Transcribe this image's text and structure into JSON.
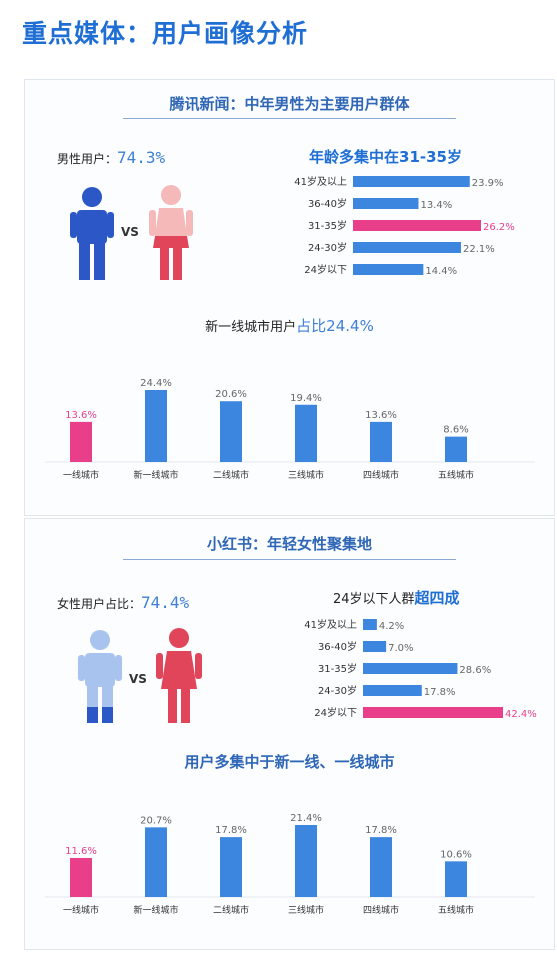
{
  "page_title": "重点媒体：用户画像分析",
  "tencent": {
    "section_title": "腾讯新闻：中年男性为主要用户群体",
    "ratio_label": "男性用户：",
    "ratio_value": "74.3%",
    "vs": "VS",
    "age_title": "年龄多集中在31-35岁",
    "city_title_prefix": "新一线城市用户",
    "city_title_highlight": "占比24.4%"
  },
  "xhs": {
    "section_title": "小红书：年轻女性聚集地",
    "ratio_label": "女性用户占比：",
    "ratio_value": "74.4%",
    "vs": "VS",
    "age_title_prefix": "24岁以下人群",
    "age_title_highlight": "超四成",
    "city_title": "用户多集中于新一线、一线城市"
  },
  "colors": {
    "blue": "#3d86e0",
    "pink": "#e93f8a",
    "title_blue": "#1f6ed4",
    "male_blue": "#2b58c6",
    "female_red": "#e0455a"
  },
  "chart_data": [
    {
      "type": "bar",
      "orientation": "horizontal",
      "categories": [
        "41岁及以上",
        "36-40岁",
        "31-35岁",
        "24-30岁",
        "24岁以下"
      ],
      "values": [
        23.9,
        13.4,
        26.2,
        22.1,
        14.4
      ],
      "labels": [
        "23.9%",
        "13.4%",
        "26.2%",
        "22.1%",
        "14.4%"
      ],
      "highlight_index": 2,
      "title": "年龄多集中在31-35岁"
    },
    {
      "type": "bar",
      "categories": [
        "一线城市",
        "新一线城市",
        "二线城市",
        "三线城市",
        "四线城市",
        "五线城市"
      ],
      "values": [
        13.6,
        24.4,
        20.6,
        19.4,
        13.6,
        8.6
      ],
      "labels": [
        "13.6%",
        "24.4%",
        "20.6%",
        "19.4%",
        "13.6%",
        "8.6%"
      ],
      "highlight_index": 0,
      "title": "新一线城市用户占比24.4%"
    },
    {
      "type": "bar",
      "orientation": "horizontal",
      "categories": [
        "41岁及以上",
        "36-40岁",
        "31-35岁",
        "24-30岁",
        "24岁以下"
      ],
      "values": [
        4.2,
        7.0,
        28.6,
        17.8,
        42.4
      ],
      "labels": [
        "4.2%",
        "7.0%",
        "28.6%",
        "17.8%",
        "42.4%"
      ],
      "highlight_index": 4,
      "title": "24岁以下人群超四成"
    },
    {
      "type": "bar",
      "categories": [
        "一线城市",
        "新一线城市",
        "二线城市",
        "三线城市",
        "四线城市",
        "五线城市"
      ],
      "values": [
        11.6,
        20.7,
        17.8,
        21.4,
        17.8,
        10.6
      ],
      "labels": [
        "11.6%",
        "20.7%",
        "17.8%",
        "21.4%",
        "17.8%",
        "10.6%"
      ],
      "highlight_index": 0,
      "title": "用户多集中于新一线、一线城市"
    }
  ]
}
